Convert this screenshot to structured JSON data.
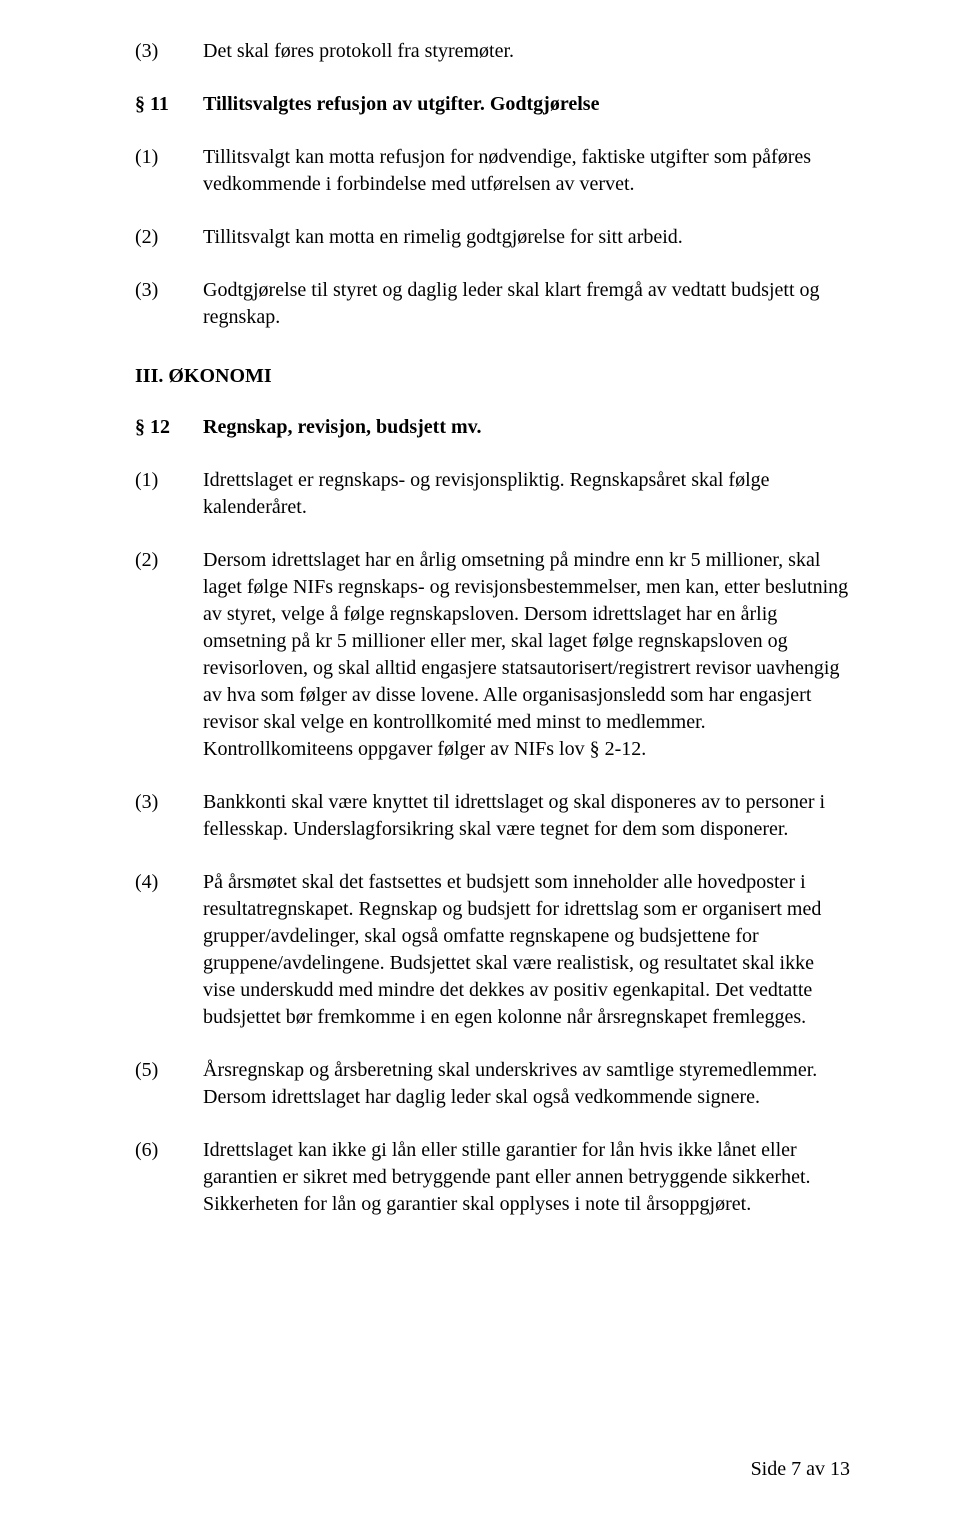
{
  "items": [
    {
      "label": "(3)",
      "text": "Det skal føres protokoll fra styremøter.",
      "bold": false
    },
    {
      "label": "§ 11",
      "text": "Tillitsvalgtes refusjon av utgifter. Godtgjørelse",
      "bold": true
    },
    {
      "label": "(1)",
      "text": "Tillitsvalgt kan motta refusjon for nødvendige, faktiske utgifter som påføres vedkommende i forbindelse med utførelsen av vervet.",
      "bold": false
    },
    {
      "label": "(2)",
      "text": "Tillitsvalgt kan motta en rimelig godtgjørelse for sitt arbeid.",
      "bold": false
    },
    {
      "label": "(3)",
      "text": "Godtgjørelse til styret og daglig leder skal klart fremgå av vedtatt budsjett og regnskap.",
      "bold": false
    }
  ],
  "roman_heading": "III. ØKONOMI",
  "items2": [
    {
      "label": "§ 12",
      "text": "Regnskap, revisjon, budsjett mv.",
      "bold": true
    },
    {
      "label": "(1)",
      "text": "Idrettslaget er regnskaps- og revisjonspliktig. Regnskapsåret skal følge kalenderåret.",
      "bold": false
    },
    {
      "label": "(2)",
      "text": "Dersom idrettslaget har en årlig omsetning på mindre enn kr 5 millioner, skal laget følge NIFs regnskaps- og revisjonsbestemmelser, men kan, etter beslutning av styret, velge å følge regnskapsloven. Dersom idrettslaget har en årlig omsetning på kr 5 millioner eller mer, skal laget følge regnskapsloven og revisorloven, og skal alltid engasjere statsautorisert/registrert revisor uavhengig av hva som følger av disse lovene. Alle organisasjonsledd som har engasjert revisor skal velge en kontrollkomité med minst to medlemmer. Kontrollkomiteens oppgaver følger av NIFs lov § 2-12.",
      "bold": false
    },
    {
      "label": "(3)",
      "text": "Bankkonti skal være knyttet til idrettslaget og skal disponeres av to personer i fellesskap. Underslagforsikring skal være tegnet for dem som disponerer.",
      "bold": false
    },
    {
      "label": "(4)",
      "text": "På årsmøtet skal det fastsettes et budsjett som inneholder alle hovedposter i resultatregnskapet. Regnskap og budsjett for idrettslag som er organisert med grupper/avdelinger, skal også omfatte regnskapene og budsjettene for gruppene/avdelingene. Budsjettet skal være realistisk, og resultatet skal ikke vise underskudd med mindre det dekkes av positiv egenkapital. Det vedtatte budsjettet bør fremkomme i en egen kolonne når årsregnskapet fremlegges.",
      "bold": false
    },
    {
      "label": "(5)",
      "text": "Årsregnskap og årsberetning skal underskrives av samtlige styremedlemmer. Dersom idrettslaget har daglig leder skal også vedkommende signere.",
      "bold": false
    },
    {
      "label": "(6)",
      "text": "Idrettslaget kan ikke gi lån eller stille garantier for lån hvis ikke lånet eller garantien er sikret med betryggende pant eller annen betryggende sikkerhet. Sikkerheten for lån og garantier skal opplyses i note til årsoppgjøret.",
      "bold": false
    }
  ],
  "footer": "Side 7 av 13"
}
